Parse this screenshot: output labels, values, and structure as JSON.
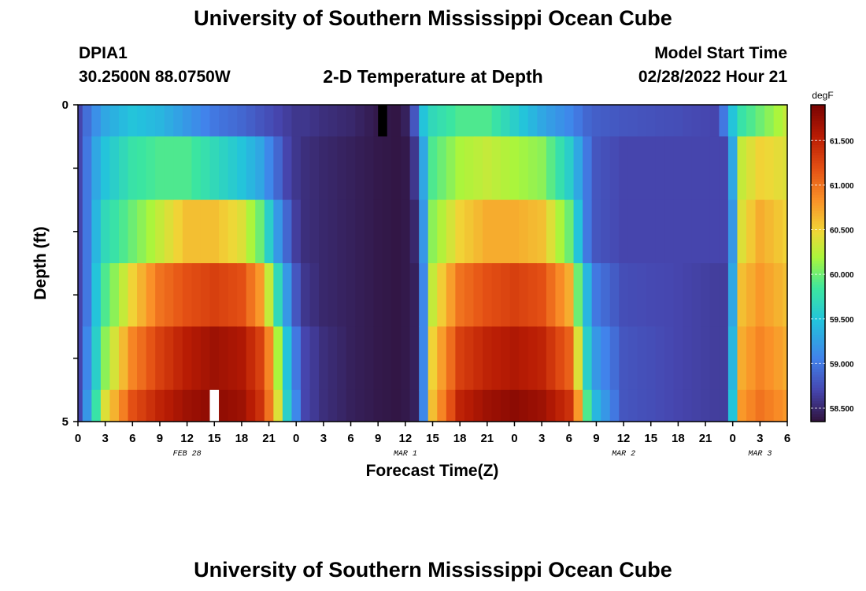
{
  "page": {
    "title": "University of Southern Mississippi Ocean Cube",
    "bottom_title": "University of Southern Mississippi Ocean Cube",
    "station_id": "DPIA1",
    "station_coords": "30.2500N  88.0750W",
    "plot_title": "2-D Temperature at Depth",
    "model_start_label": "Model Start Time",
    "model_start_value": "02/28/2022 Hour 21"
  },
  "chart_data": {
    "type": "heatmap",
    "title": "2-D Temperature at Depth",
    "xlabel": "Forecast Time(Z)",
    "ylabel": "Depth (ft)",
    "colorbar_unit": "degF",
    "x_hours": [
      0,
      1,
      2,
      3,
      4,
      5,
      6,
      7,
      8,
      9,
      10,
      11,
      12,
      13,
      14,
      15,
      16,
      17,
      18,
      19,
      20,
      21,
      22,
      23,
      24,
      25,
      26,
      27,
      28,
      29,
      30,
      31,
      32,
      33,
      34,
      35,
      36,
      37,
      38,
      39,
      40,
      41,
      42,
      43,
      44,
      45,
      46,
      47,
      48,
      49,
      50,
      51,
      52,
      53,
      54,
      55,
      56,
      57,
      58,
      59,
      60,
      61,
      62,
      63,
      64,
      65,
      66,
      67,
      68,
      69,
      70,
      71,
      72,
      73,
      74,
      75,
      76,
      77,
      78
    ],
    "x_tick_labels": [
      "0",
      "3",
      "6",
      "9",
      "12",
      "15",
      "18",
      "21",
      "0",
      "3",
      "6",
      "9",
      "12",
      "15",
      "18",
      "21",
      "0",
      "3",
      "6",
      "9",
      "12",
      "15",
      "18",
      "21",
      "0",
      "3",
      "6"
    ],
    "day_labels": [
      {
        "label": "FEB 28",
        "hour": 12
      },
      {
        "label": "MAR 1",
        "hour": 36
      },
      {
        "label": "MAR 2",
        "hour": 60
      },
      {
        "label": "MAR 3",
        "hour": 75
      }
    ],
    "y_range": [
      0,
      5
    ],
    "y_tick_labels": [
      "0",
      "5"
    ],
    "depth_layers": [
      {
        "top": 0,
        "bottom": 0.5
      },
      {
        "top": 0.5,
        "bottom": 1.5
      },
      {
        "top": 1.5,
        "bottom": 2.5
      },
      {
        "top": 2.5,
        "bottom": 3.5
      },
      {
        "top": 3.5,
        "bottom": 4.5
      },
      {
        "top": 4.5,
        "bottom": 5
      }
    ],
    "colorbar_range": [
      58.35,
      61.9
    ],
    "colorbar_ticks": [
      58.5,
      59.0,
      59.5,
      60.0,
      60.5,
      61.0,
      61.5
    ],
    "colorbar_tick_labels": [
      "58.500",
      "59.000",
      "59.500",
      "60.000",
      "60.500",
      "61.000",
      "61.500"
    ],
    "keyframes": [
      {
        "hour": 0,
        "values": [
          58.7,
          58.7,
          58.7,
          58.7,
          58.7,
          58.7
        ]
      },
      {
        "hour": 1,
        "values": [
          58.95,
          59.0,
          59.0,
          59.0,
          59.1,
          59.2
        ]
      },
      {
        "hour": 2,
        "values": [
          59.15,
          59.3,
          59.4,
          59.5,
          59.6,
          59.8
        ]
      },
      {
        "hour": 3,
        "values": [
          59.3,
          59.5,
          59.7,
          59.9,
          60.1,
          60.4
        ]
      },
      {
        "hour": 6,
        "values": [
          59.5,
          59.8,
          60.0,
          60.5,
          60.9,
          61.2
        ]
      },
      {
        "hour": 9,
        "values": [
          59.4,
          59.9,
          60.3,
          61.0,
          61.3,
          61.5
        ]
      },
      {
        "hour": 12,
        "values": [
          59.2,
          59.9,
          60.6,
          61.2,
          61.55,
          61.7
        ]
      },
      {
        "hour": 15,
        "values": [
          59.0,
          59.7,
          60.6,
          61.3,
          61.7,
          61.8
        ]
      },
      {
        "hour": 18,
        "values": [
          58.9,
          59.5,
          60.4,
          61.2,
          61.6,
          61.7
        ]
      },
      {
        "hour": 20,
        "values": [
          58.8,
          59.3,
          60.0,
          60.8,
          61.3,
          61.4
        ]
      },
      {
        "hour": 21,
        "values": [
          58.75,
          59.1,
          59.6,
          60.3,
          60.9,
          61.0
        ]
      },
      {
        "hour": 22,
        "values": [
          58.7,
          58.9,
          59.2,
          59.7,
          60.2,
          60.4
        ]
      },
      {
        "hour": 23,
        "values": [
          58.65,
          58.7,
          58.9,
          59.2,
          59.5,
          59.6
        ]
      },
      {
        "hour": 24,
        "values": [
          58.6,
          58.6,
          58.65,
          58.8,
          59.0,
          59.1
        ]
      },
      {
        "hour": 25,
        "values": [
          58.6,
          58.55,
          58.55,
          58.6,
          58.7,
          58.7
        ]
      },
      {
        "hour": 27,
        "values": [
          58.55,
          58.5,
          58.5,
          58.5,
          58.55,
          58.55
        ]
      },
      {
        "hour": 30,
        "values": [
          58.5,
          58.45,
          58.45,
          58.45,
          58.45,
          58.45
        ]
      },
      {
        "hour": 33,
        "values": [
          58.4,
          58.4,
          58.4,
          58.4,
          58.4,
          58.4
        ]
      },
      {
        "hour": 35,
        "values": [
          58.38,
          58.38,
          58.38,
          58.38,
          58.38,
          58.38
        ]
      },
      {
        "hour": 36,
        "values": [
          58.45,
          58.4,
          58.4,
          58.4,
          58.4,
          58.4
        ]
      },
      {
        "hour": 37,
        "values": [
          58.8,
          58.6,
          58.5,
          58.45,
          58.45,
          58.45
        ]
      },
      {
        "hour": 38,
        "values": [
          59.5,
          59.3,
          59.2,
          59.1,
          59.1,
          59.1
        ]
      },
      {
        "hour": 39,
        "values": [
          59.7,
          59.9,
          60.1,
          60.3,
          60.5,
          60.6
        ]
      },
      {
        "hour": 42,
        "values": [
          59.9,
          60.2,
          60.5,
          61.0,
          61.3,
          61.5
        ]
      },
      {
        "hour": 45,
        "values": [
          59.9,
          60.3,
          60.7,
          61.2,
          61.5,
          61.7
        ]
      },
      {
        "hour": 48,
        "values": [
          59.6,
          60.2,
          60.7,
          61.3,
          61.6,
          61.8
        ]
      },
      {
        "hour": 51,
        "values": [
          59.3,
          60.1,
          60.6,
          61.2,
          61.5,
          61.7
        ]
      },
      {
        "hour": 54,
        "values": [
          59.1,
          59.6,
          60.0,
          60.7,
          61.1,
          61.4
        ]
      },
      {
        "hour": 55,
        "values": [
          59.0,
          59.3,
          59.5,
          60.0,
          60.4,
          60.8
        ]
      },
      {
        "hour": 56,
        "values": [
          58.9,
          59.0,
          59.0,
          59.4,
          59.6,
          59.9
        ]
      },
      {
        "hour": 57,
        "values": [
          58.85,
          58.8,
          58.8,
          59.0,
          59.2,
          59.4
        ]
      },
      {
        "hour": 60,
        "values": [
          58.8,
          58.7,
          58.7,
          58.75,
          58.8,
          58.8
        ]
      },
      {
        "hour": 66,
        "values": [
          58.75,
          58.7,
          58.7,
          58.7,
          58.7,
          58.7
        ]
      },
      {
        "hour": 70,
        "values": [
          58.7,
          58.7,
          58.7,
          58.65,
          58.65,
          58.65
        ]
      },
      {
        "hour": 71,
        "values": [
          59.0,
          58.7,
          58.7,
          58.65,
          58.65,
          58.65
        ]
      },
      {
        "hour": 72,
        "values": [
          59.5,
          59.3,
          59.2,
          59.3,
          59.4,
          59.5
        ]
      },
      {
        "hour": 73,
        "values": [
          59.8,
          60.3,
          60.4,
          60.6,
          60.7,
          60.8
        ]
      },
      {
        "hour": 75,
        "values": [
          60.0,
          60.5,
          60.7,
          60.8,
          60.9,
          61.0
        ]
      },
      {
        "hour": 78,
        "values": [
          60.3,
          60.4,
          60.5,
          60.6,
          60.7,
          60.8
        ]
      }
    ],
    "markers": [
      {
        "hour": 33.5,
        "depth_top": 0,
        "depth_bottom": 0.5,
        "color": "#000000"
      },
      {
        "hour": 15,
        "depth_top": 4.5,
        "depth_bottom": 5,
        "color": "#ffffff"
      }
    ]
  }
}
